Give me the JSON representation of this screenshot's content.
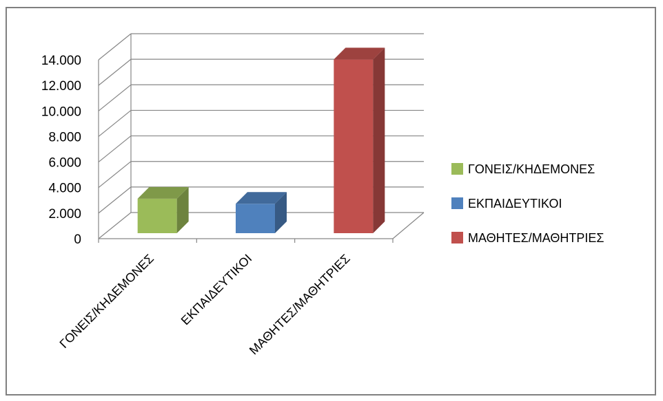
{
  "chart_data": {
    "type": "bar",
    "subtype": "3d-clustered-column",
    "title": "",
    "xlabel": "",
    "ylabel": "",
    "categories": [
      "ΓΟΝΕΙΣ/ΚΗΔΕΜΟΝΕΣ",
      "ΕΚΠΑΙΔΕΥΤΙΚΟΙ",
      "ΜΑΘΗΤΕΣ/ΜΑΘΗΤΡΙΕΣ"
    ],
    "values": [
      2700,
      2300,
      13600
    ],
    "colors": [
      "#9bbb59",
      "#4f81bd",
      "#c0504d"
    ],
    "ylim": [
      0,
      14000
    ],
    "yticks": [
      0,
      2000,
      4000,
      6000,
      8000,
      10000,
      12000,
      14000
    ],
    "ytick_labels": [
      "0",
      "2.000",
      "4.000",
      "6.000",
      "8.000",
      "10.000",
      "12.000",
      "14.000"
    ],
    "grid": true,
    "legend": {
      "placement": "right",
      "entries": [
        "ΓΟΝΕΙΣ/ΚΗΔΕΜΟΝΕΣ",
        "ΕΚΠΑΙΔΕΥΤΙΚΟΙ",
        "ΜΑΘΗΤΕΣ/ΜΑΘΗΤΡΙΕΣ"
      ]
    }
  }
}
